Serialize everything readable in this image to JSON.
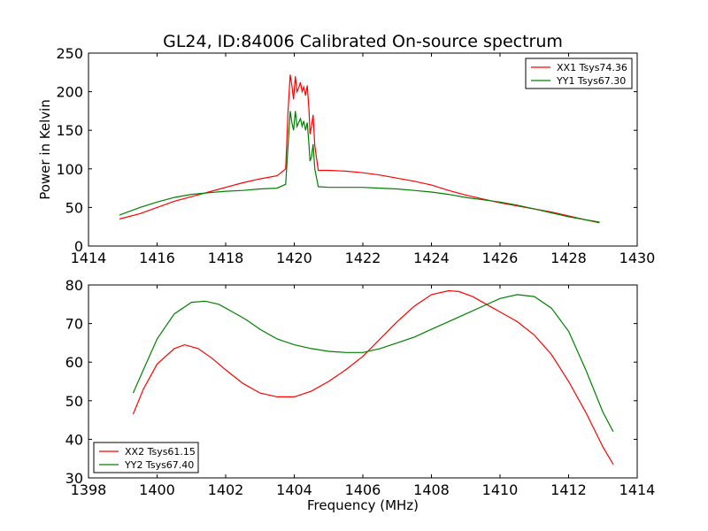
{
  "chart_data": [
    {
      "type": "line",
      "title": "GL24, ID:84006 Calibrated On-source spectrum",
      "xlabel": "",
      "ylabel": "Power in Kelvin",
      "xlim": [
        1414,
        1430
      ],
      "ylim": [
        0,
        250
      ],
      "xticks": [
        1414,
        1416,
        1418,
        1420,
        1422,
        1424,
        1426,
        1428,
        1430
      ],
      "yticks": [
        0,
        50,
        100,
        150,
        200,
        250
      ],
      "legend_position": "top-right",
      "series": [
        {
          "name": "XX1 Tsys74.36",
          "color": "#ff0000",
          "x": [
            1414.9,
            1415.5,
            1416.0,
            1416.5,
            1417.0,
            1417.5,
            1418.0,
            1418.5,
            1419.0,
            1419.5,
            1419.75,
            1419.82,
            1419.88,
            1419.93,
            1419.98,
            1420.03,
            1420.08,
            1420.13,
            1420.18,
            1420.23,
            1420.28,
            1420.33,
            1420.38,
            1420.43,
            1420.46,
            1420.5,
            1420.55,
            1420.6,
            1420.7,
            1421.0,
            1421.5,
            1422.0,
            1422.5,
            1423.0,
            1423.5,
            1424.0,
            1424.5,
            1425.0,
            1425.5,
            1426.0,
            1426.5,
            1427.0,
            1427.5,
            1428.0,
            1428.5,
            1428.9
          ],
          "y": [
            35,
            42,
            50,
            58,
            64,
            70,
            76,
            82,
            87,
            91,
            100,
            175,
            222,
            208,
            190,
            220,
            200,
            205,
            212,
            200,
            206,
            195,
            208,
            175,
            145,
            155,
            170,
            130,
            98,
            98,
            97,
            95,
            92,
            88,
            84,
            79,
            72,
            66,
            61,
            56,
            52,
            48,
            44,
            39,
            34,
            30
          ]
        },
        {
          "name": "YY1 Tsys67.30",
          "color": "#008000",
          "x": [
            1414.9,
            1415.5,
            1416.0,
            1416.5,
            1417.0,
            1417.5,
            1418.0,
            1418.5,
            1419.0,
            1419.5,
            1419.75,
            1419.82,
            1419.88,
            1419.93,
            1419.98,
            1420.03,
            1420.08,
            1420.13,
            1420.18,
            1420.23,
            1420.28,
            1420.33,
            1420.38,
            1420.43,
            1420.46,
            1420.5,
            1420.55,
            1420.6,
            1420.7,
            1421.0,
            1421.5,
            1422.0,
            1422.5,
            1423.0,
            1423.5,
            1424.0,
            1424.5,
            1425.0,
            1425.5,
            1426.0,
            1426.5,
            1427.0,
            1427.5,
            1428.0,
            1428.5,
            1428.9
          ],
          "y": [
            40,
            50,
            57,
            63,
            67,
            69,
            71,
            72,
            74,
            75,
            80,
            130,
            175,
            160,
            150,
            175,
            155,
            160,
            165,
            155,
            162,
            150,
            160,
            130,
            110,
            115,
            132,
            100,
            77,
            76,
            76,
            76,
            75,
            74,
            72,
            70,
            67,
            63,
            60,
            57,
            53,
            48,
            43,
            38,
            34,
            31
          ]
        }
      ]
    },
    {
      "type": "line",
      "title": "",
      "xlabel": "Frequency (MHz)",
      "ylabel": "",
      "xlim": [
        1398,
        1414
      ],
      "ylim": [
        30,
        80
      ],
      "xticks": [
        1398,
        1400,
        1402,
        1404,
        1406,
        1408,
        1410,
        1412,
        1414
      ],
      "yticks": [
        30,
        40,
        50,
        60,
        70,
        80
      ],
      "legend_position": "bottom-left",
      "series": [
        {
          "name": "XX2 Tsys61.15",
          "color": "#ff0000",
          "x": [
            1399.3,
            1399.6,
            1400.0,
            1400.5,
            1400.8,
            1401.2,
            1401.6,
            1402.0,
            1402.5,
            1403.0,
            1403.5,
            1404.0,
            1404.5,
            1405.0,
            1405.5,
            1406.0,
            1406.5,
            1407.0,
            1407.5,
            1408.0,
            1408.5,
            1408.8,
            1409.2,
            1409.6,
            1410.0,
            1410.5,
            1411.0,
            1411.5,
            1412.0,
            1412.5,
            1413.0,
            1413.3
          ],
          "y": [
            46.5,
            53,
            59.5,
            63.5,
            64.5,
            63.5,
            61,
            58,
            54.5,
            52,
            51,
            51,
            52.5,
            55,
            58,
            61.5,
            66,
            70.5,
            74.5,
            77.5,
            78.5,
            78.3,
            77,
            75,
            73,
            70.5,
            67,
            62,
            55,
            47,
            38,
            33.5
          ]
        },
        {
          "name": "YY2 Tsys67.40",
          "color": "#008000",
          "x": [
            1399.3,
            1399.6,
            1400.0,
            1400.5,
            1401.0,
            1401.4,
            1401.8,
            1402.2,
            1402.6,
            1403.0,
            1403.5,
            1404.0,
            1404.5,
            1405.0,
            1405.5,
            1406.0,
            1406.5,
            1407.0,
            1407.5,
            1408.0,
            1408.5,
            1409.0,
            1409.5,
            1410.0,
            1410.5,
            1411.0,
            1411.5,
            1412.0,
            1412.5,
            1413.0,
            1413.3
          ],
          "y": [
            52,
            58,
            66,
            72.5,
            75.5,
            75.8,
            75,
            73,
            71,
            68.5,
            66,
            64.5,
            63.5,
            62.8,
            62.5,
            62.5,
            63.5,
            65,
            66.5,
            68.5,
            70.5,
            72.5,
            74.5,
            76.5,
            77.5,
            77,
            74,
            68,
            58,
            47,
            42
          ]
        }
      ]
    }
  ]
}
